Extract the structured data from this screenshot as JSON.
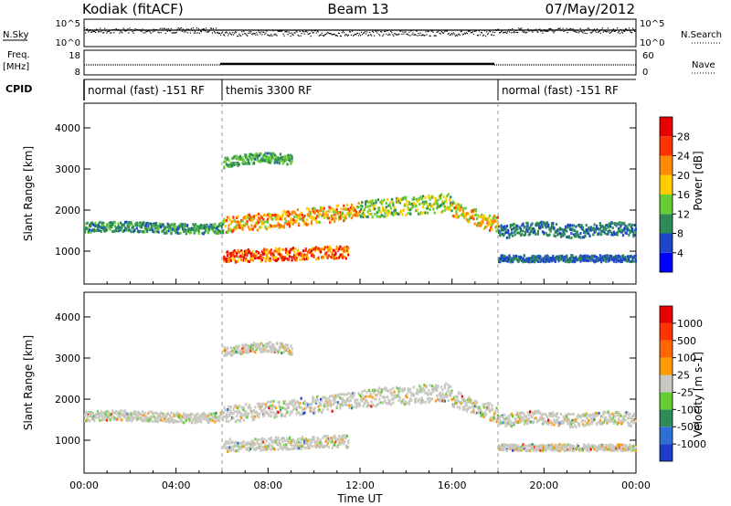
{
  "header": {
    "station": "Kodiak (fitACF)",
    "beam": "Beam 13",
    "date": "07/May/2012"
  },
  "strip_labels": {
    "nsky": "N.Sky",
    "nsky_top": "10^5",
    "nsky_bottom": "10^0",
    "nsearch": "N.Search",
    "nsearch_top": "10^5",
    "nsearch_bottom": "10^0",
    "freq_a": "Freq.",
    "freq_b": "[MHz]",
    "freq_top": "18",
    "freq_bottom": "8",
    "nave": "Nave",
    "nave_top": "60",
    "nave_bottom": "0",
    "cpid": "CPID"
  },
  "cpid_segments": [
    {
      "label": "normal (fast) -151 RF",
      "start": 0,
      "end": 6
    },
    {
      "label": "themis 3300 RF",
      "start": 6,
      "end": 18
    },
    {
      "label": "normal (fast) -151 RF",
      "start": 18,
      "end": 24
    }
  ],
  "chart_data": [
    {
      "type": "heatmap",
      "name": "power",
      "ylabel": "Slant Range [km]",
      "xlim": [
        0,
        24
      ],
      "ylim": [
        200,
        4600
      ],
      "yticks": [
        "1000",
        "2000",
        "3000",
        "4000"
      ],
      "colorbar": {
        "label": "Power [dB]",
        "ticks": [
          "4",
          "8",
          "12",
          "16",
          "20",
          "24",
          "28"
        ],
        "colors": [
          "#0000ff",
          "#1e46c8",
          "#2e8b57",
          "#66cc33",
          "#ffcc00",
          "#ff8c00",
          "#ff3300",
          "#e60000"
        ]
      }
    },
    {
      "type": "heatmap",
      "name": "velocity",
      "ylabel": "Slant Range [km]",
      "xlabel": "Time UT",
      "xlim": [
        0,
        24
      ],
      "ylim": [
        200,
        4600
      ],
      "yticks": [
        "1000",
        "2000",
        "3000",
        "4000"
      ],
      "xticks": [
        "00:00",
        "04:00",
        "08:00",
        "12:00",
        "16:00",
        "20:00",
        "00:00"
      ],
      "colorbar": {
        "label": "Velocity [m s-1]",
        "ticks": [
          "1000",
          "500",
          "100",
          "25",
          "-25",
          "-100",
          "-500",
          "-1000"
        ],
        "colors": [
          "#1e3cc8",
          "#2e6fd6",
          "#2e8b57",
          "#66cc33",
          "#c8c8c0",
          "#ff9900",
          "#ff6600",
          "#ff3300",
          "#e60000"
        ]
      }
    }
  ]
}
